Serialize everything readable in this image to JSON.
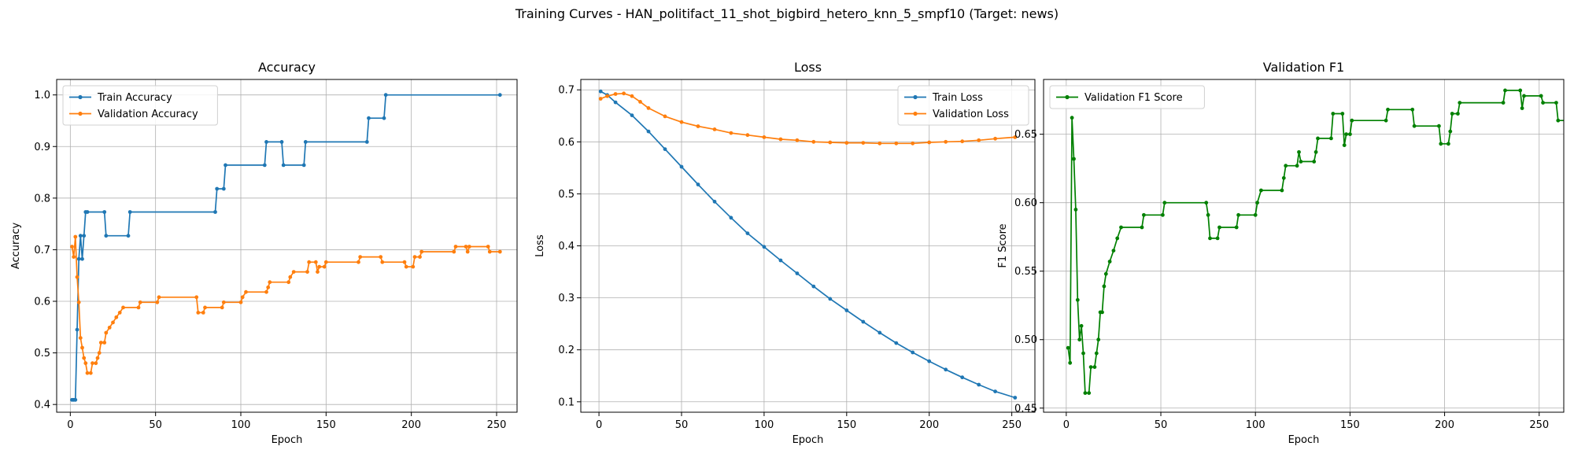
{
  "suptitle": "Training Curves - HAN_politifact_11_shot_bigbird_hetero_knn_5_smpf10 (Target: news)",
  "colors": {
    "train": "#1f77b4",
    "val": "#ff7f0e",
    "f1": "#008000",
    "grid": "#b0b0b0"
  },
  "chart_data": [
    {
      "type": "line",
      "title": "Accuracy",
      "xlabel": "Epoch",
      "ylabel": "Accuracy",
      "xlim": [
        -8,
        262
      ],
      "ylim": [
        0.385,
        1.03
      ],
      "xticks": [
        0,
        50,
        100,
        150,
        200,
        250
      ],
      "yticks": [
        0.4,
        0.5,
        0.6,
        0.7,
        0.8,
        0.9,
        1.0
      ],
      "ytick_labels": [
        "0.4",
        "0.5",
        "0.6",
        "0.7",
        "0.8",
        "0.9",
        "1.0"
      ],
      "grid": true,
      "legend_position": "top-left",
      "series": [
        {
          "name": "Train Accuracy",
          "color": "#1f77b4",
          "points": [
            [
              1,
              0.409
            ],
            [
              2,
              0.409
            ],
            [
              3,
              0.409
            ],
            [
              4,
              0.545
            ],
            [
              5,
              0.682
            ],
            [
              6,
              0.727
            ],
            [
              7,
              0.682
            ],
            [
              8,
              0.727
            ],
            [
              9,
              0.773
            ],
            [
              10,
              0.773
            ],
            [
              20,
              0.773
            ],
            [
              21,
              0.727
            ],
            [
              34,
              0.727
            ],
            [
              35,
              0.773
            ],
            [
              85,
              0.773
            ],
            [
              86,
              0.818
            ],
            [
              90,
              0.818
            ],
            [
              91,
              0.864
            ],
            [
              114,
              0.864
            ],
            [
              115,
              0.909
            ],
            [
              124,
              0.909
            ],
            [
              125,
              0.864
            ],
            [
              137,
              0.864
            ],
            [
              138,
              0.909
            ],
            [
              174,
              0.909
            ],
            [
              175,
              0.955
            ],
            [
              184,
              0.955
            ],
            [
              185,
              1.0
            ],
            [
              252,
              1.0
            ]
          ]
        },
        {
          "name": "Validation Accuracy",
          "color": "#ff7f0e",
          "points": [
            [
              1,
              0.706
            ],
            [
              2,
              0.686
            ],
            [
              3,
              0.725
            ],
            [
              4,
              0.647
            ],
            [
              5,
              0.598
            ],
            [
              6,
              0.529
            ],
            [
              7,
              0.51
            ],
            [
              8,
              0.49
            ],
            [
              9,
              0.48
            ],
            [
              10,
              0.461
            ],
            [
              12,
              0.461
            ],
            [
              13,
              0.48
            ],
            [
              15,
              0.48
            ],
            [
              16,
              0.49
            ],
            [
              17,
              0.5
            ],
            [
              18,
              0.52
            ],
            [
              20,
              0.52
            ],
            [
              21,
              0.539
            ],
            [
              23,
              0.549
            ],
            [
              25,
              0.559
            ],
            [
              27,
              0.569
            ],
            [
              29,
              0.578
            ],
            [
              31,
              0.588
            ],
            [
              40,
              0.588
            ],
            [
              41,
              0.598
            ],
            [
              51,
              0.598
            ],
            [
              52,
              0.608
            ],
            [
              74,
              0.608
            ],
            [
              75,
              0.578
            ],
            [
              78,
              0.578
            ],
            [
              79,
              0.588
            ],
            [
              89,
              0.588
            ],
            [
              90,
              0.598
            ],
            [
              100,
              0.598
            ],
            [
              101,
              0.608
            ],
            [
              103,
              0.618
            ],
            [
              115,
              0.618
            ],
            [
              116,
              0.627
            ],
            [
              117,
              0.637
            ],
            [
              128,
              0.637
            ],
            [
              129,
              0.647
            ],
            [
              131,
              0.657
            ],
            [
              139,
              0.657
            ],
            [
              140,
              0.676
            ],
            [
              144,
              0.676
            ],
            [
              145,
              0.657
            ],
            [
              146,
              0.667
            ],
            [
              149,
              0.667
            ],
            [
              150,
              0.676
            ],
            [
              169,
              0.676
            ],
            [
              170,
              0.686
            ],
            [
              182,
              0.686
            ],
            [
              183,
              0.676
            ],
            [
              196,
              0.676
            ],
            [
              197,
              0.667
            ],
            [
              201,
              0.667
            ],
            [
              202,
              0.686
            ],
            [
              205,
              0.686
            ],
            [
              206,
              0.696
            ],
            [
              225,
              0.696
            ],
            [
              226,
              0.706
            ],
            [
              232,
              0.706
            ],
            [
              233,
              0.696
            ],
            [
              234,
              0.706
            ],
            [
              245,
              0.706
            ],
            [
              246,
              0.696
            ],
            [
              252,
              0.696
            ]
          ]
        }
      ]
    },
    {
      "type": "line",
      "title": "Loss",
      "xlabel": "Epoch",
      "ylabel": "Loss",
      "xlim": [
        -11,
        264
      ],
      "ylim": [
        0.08,
        0.72
      ],
      "xticks": [
        0,
        50,
        100,
        150,
        200,
        250
      ],
      "yticks": [
        0.1,
        0.2,
        0.3,
        0.4,
        0.5,
        0.6,
        0.7
      ],
      "ytick_labels": [
        "0.1",
        "0.2",
        "0.3",
        "0.4",
        "0.5",
        "0.6",
        "0.7"
      ],
      "grid": true,
      "legend_position": "top-right",
      "series": [
        {
          "name": "Train Loss",
          "color": "#1f77b4",
          "points": [
            [
              1,
              0.697
            ],
            [
              5,
              0.69
            ],
            [
              10,
              0.676
            ],
            [
              20,
              0.651
            ],
            [
              30,
              0.62
            ],
            [
              40,
              0.586
            ],
            [
              50,
              0.552
            ],
            [
              60,
              0.518
            ],
            [
              70,
              0.485
            ],
            [
              80,
              0.454
            ],
            [
              90,
              0.424
            ],
            [
              100,
              0.398
            ],
            [
              110,
              0.372
            ],
            [
              120,
              0.347
            ],
            [
              130,
              0.322
            ],
            [
              140,
              0.298
            ],
            [
              150,
              0.276
            ],
            [
              160,
              0.254
            ],
            [
              170,
              0.233
            ],
            [
              180,
              0.213
            ],
            [
              190,
              0.195
            ],
            [
              200,
              0.178
            ],
            [
              210,
              0.162
            ],
            [
              220,
              0.147
            ],
            [
              230,
              0.133
            ],
            [
              240,
              0.12
            ],
            [
              252,
              0.108
            ]
          ]
        },
        {
          "name": "Validation Loss",
          "color": "#ff7f0e",
          "points": [
            [
              1,
              0.683
            ],
            [
              5,
              0.688
            ],
            [
              10,
              0.692
            ],
            [
              15,
              0.693
            ],
            [
              20,
              0.688
            ],
            [
              25,
              0.677
            ],
            [
              30,
              0.665
            ],
            [
              40,
              0.649
            ],
            [
              50,
              0.638
            ],
            [
              60,
              0.63
            ],
            [
              70,
              0.624
            ],
            [
              80,
              0.617
            ],
            [
              90,
              0.613
            ],
            [
              100,
              0.609
            ],
            [
              110,
              0.605
            ],
            [
              120,
              0.603
            ],
            [
              130,
              0.6
            ],
            [
              140,
              0.599
            ],
            [
              150,
              0.598
            ],
            [
              160,
              0.598
            ],
            [
              170,
              0.597
            ],
            [
              180,
              0.597
            ],
            [
              190,
              0.597
            ],
            [
              200,
              0.599
            ],
            [
              210,
              0.6
            ],
            [
              220,
              0.601
            ],
            [
              230,
              0.603
            ],
            [
              240,
              0.606
            ],
            [
              252,
              0.609
            ]
          ]
        }
      ]
    },
    {
      "type": "line",
      "title": "Validation F1",
      "xlabel": "Epoch",
      "ylabel": "F1 Score",
      "xlim": [
        -12,
        263
      ],
      "ylim": [
        0.447,
        0.69
      ],
      "xticks": [
        0,
        50,
        100,
        150,
        200,
        250
      ],
      "yticks": [
        0.45,
        0.5,
        0.55,
        0.6,
        0.65
      ],
      "ytick_labels": [
        "0.45",
        "0.50",
        "0.55",
        "0.60",
        "0.65"
      ],
      "grid": true,
      "legend_position": "top-left",
      "series": [
        {
          "name": "Validation F1 Score",
          "color": "#008000",
          "points": [
            [
              1,
              0.494
            ],
            [
              2,
              0.483
            ],
            [
              3,
              0.662
            ],
            [
              4,
              0.632
            ],
            [
              5,
              0.595
            ],
            [
              6,
              0.529
            ],
            [
              7,
              0.5
            ],
            [
              8,
              0.51
            ],
            [
              9,
              0.49
            ],
            [
              10,
              0.461
            ],
            [
              12,
              0.461
            ],
            [
              13,
              0.48
            ],
            [
              15,
              0.48
            ],
            [
              16,
              0.49
            ],
            [
              17,
              0.5
            ],
            [
              18,
              0.52
            ],
            [
              19,
              0.52
            ],
            [
              20,
              0.539
            ],
            [
              21,
              0.548
            ],
            [
              23,
              0.557
            ],
            [
              25,
              0.565
            ],
            [
              27,
              0.574
            ],
            [
              29,
              0.582
            ],
            [
              40,
              0.582
            ],
            [
              41,
              0.591
            ],
            [
              51,
              0.591
            ],
            [
              52,
              0.6
            ],
            [
              74,
              0.6
            ],
            [
              75,
              0.591
            ],
            [
              76,
              0.574
            ],
            [
              80,
              0.574
            ],
            [
              81,
              0.582
            ],
            [
              90,
              0.582
            ],
            [
              91,
              0.591
            ],
            [
              100,
              0.591
            ],
            [
              101,
              0.6
            ],
            [
              103,
              0.609
            ],
            [
              114,
              0.609
            ],
            [
              115,
              0.618
            ],
            [
              116,
              0.627
            ],
            [
              122,
              0.627
            ],
            [
              123,
              0.637
            ],
            [
              124,
              0.63
            ],
            [
              131,
              0.63
            ],
            [
              132,
              0.637
            ],
            [
              133,
              0.647
            ],
            [
              140,
              0.647
            ],
            [
              141,
              0.665
            ],
            [
              146,
              0.665
            ],
            [
              147,
              0.642
            ],
            [
              148,
              0.65
            ],
            [
              150,
              0.65
            ],
            [
              151,
              0.66
            ],
            [
              169,
              0.66
            ],
            [
              170,
              0.668
            ],
            [
              183,
              0.668
            ],
            [
              184,
              0.656
            ],
            [
              197,
              0.656
            ],
            [
              198,
              0.643
            ],
            [
              202,
              0.643
            ],
            [
              203,
              0.652
            ],
            [
              204,
              0.665
            ],
            [
              207,
              0.665
            ],
            [
              208,
              0.673
            ],
            [
              231,
              0.673
            ],
            [
              232,
              0.682
            ],
            [
              240,
              0.682
            ],
            [
              241,
              0.669
            ],
            [
              242,
              0.678
            ],
            [
              251,
              0.678
            ],
            [
              252,
              0.673
            ],
            [
              259,
              0.673
            ],
            [
              260,
              0.66
            ],
            [
              266,
              0.66
            ]
          ]
        }
      ]
    }
  ]
}
